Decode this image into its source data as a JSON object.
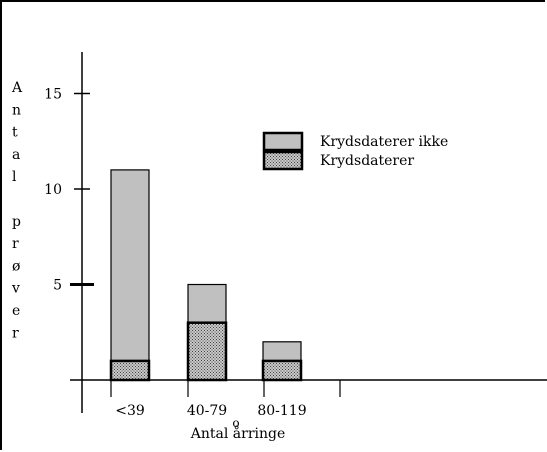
{
  "chart_data": {
    "type": "bar",
    "stacked": true,
    "categories": [
      "<39",
      "40-79",
      "80-119"
    ],
    "series": [
      {
        "name": "Krydsdaterer",
        "values": [
          1,
          3,
          1
        ],
        "color": "#8c8c8c",
        "pattern": "dotted"
      },
      {
        "name": "Krydsdaterer ikke",
        "values": [
          10,
          2,
          1
        ],
        "color": "#c0c0c0",
        "pattern": "solid"
      }
    ],
    "legend_order": [
      "Krydsdaterer ikke",
      "Krydsdaterer"
    ],
    "ylabel_letters": [
      "A",
      "n",
      "t",
      "a",
      "l",
      "",
      "p",
      "r",
      "ø",
      "v",
      "e",
      "r"
    ],
    "xlabel": "Antal årringe",
    "xlabel_mark": "o",
    "yticks": [
      5,
      10,
      15
    ],
    "ylim": [
      0,
      15
    ],
    "grid": false,
    "legend_position": "top-right"
  }
}
